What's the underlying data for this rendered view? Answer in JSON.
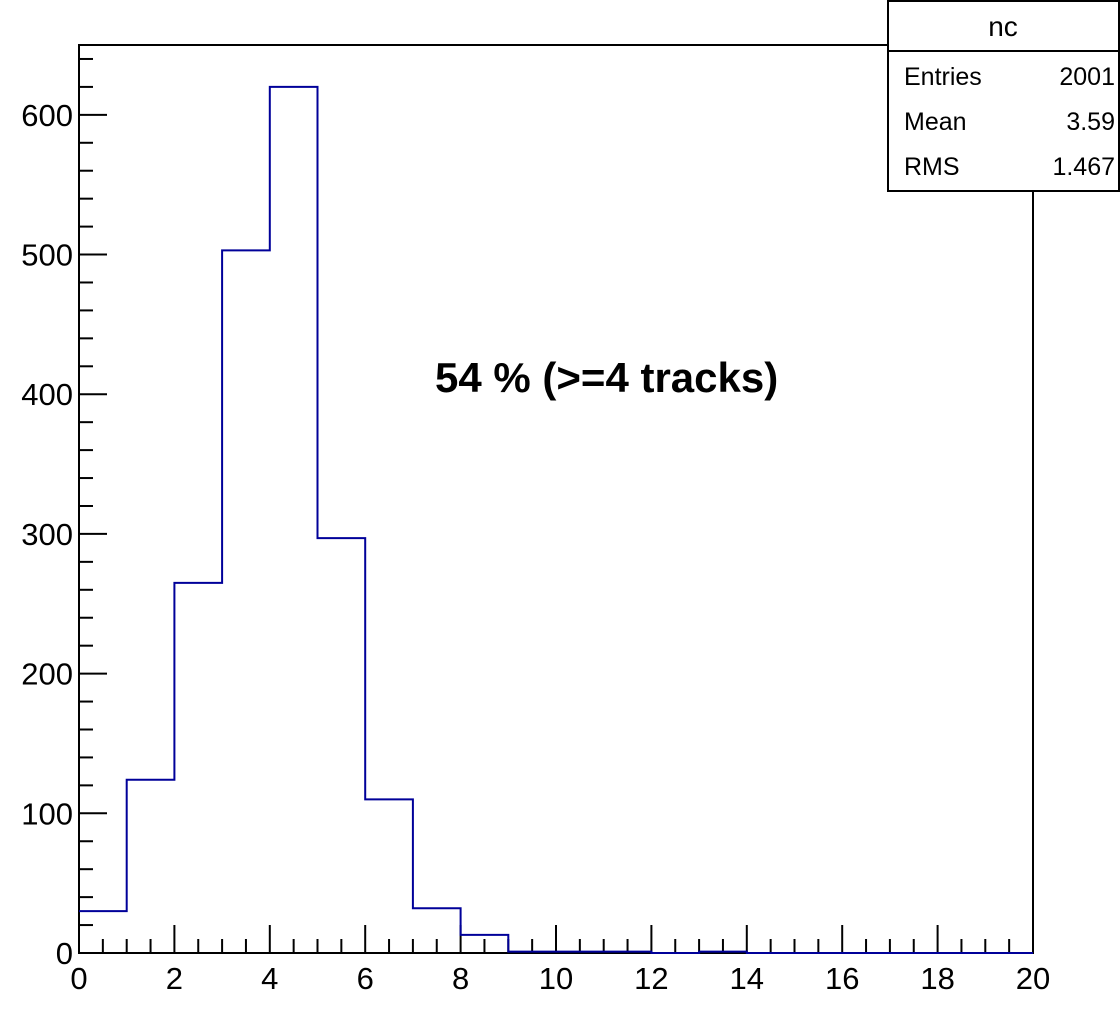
{
  "chart_data": {
    "type": "histogram",
    "bin_edges": [
      0,
      1,
      2,
      3,
      4,
      5,
      6,
      7,
      8,
      9,
      10,
      11,
      12,
      13,
      14,
      15,
      16,
      17,
      18,
      19,
      20
    ],
    "values": [
      30,
      124,
      265,
      503,
      620,
      297,
      110,
      32,
      13,
      1,
      1,
      1,
      0,
      1,
      0,
      0,
      0,
      0,
      0,
      0
    ],
    "line_color": "#000099",
    "xlim": [
      0,
      20
    ],
    "ylim": [
      0,
      650
    ],
    "x_tick_labels": [
      "0",
      "2",
      "4",
      "6",
      "8",
      "10",
      "12",
      "14",
      "16",
      "18",
      "20"
    ],
    "y_tick_labels": [
      "0",
      "100",
      "200",
      "300",
      "400",
      "500",
      "600"
    ],
    "annotation": "54 % (>=4 tracks)",
    "title": "",
    "xlabel": "",
    "ylabel": "",
    "grid": false,
    "stats_box": {
      "title": "nc",
      "rows": [
        {
          "label": "Entries",
          "value": "2001"
        },
        {
          "label": "Mean",
          "value": "3.59"
        },
        {
          "label": "RMS",
          "value": "1.467"
        }
      ]
    }
  }
}
